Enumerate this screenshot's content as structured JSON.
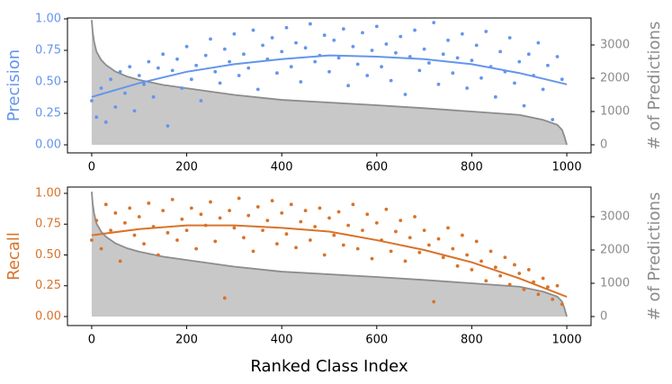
{
  "chart_data": [
    {
      "type": "scatter",
      "ylabel": "Precision",
      "y2label": "# of Predictions",
      "color": "#6495ed",
      "area_color": "#c8c8c8",
      "area_line_color": "#8c8c8c",
      "axis_label_color": "#8c8c8c",
      "xlim": [
        -51,
        1051
      ],
      "xticks": [
        0,
        200,
        400,
        600,
        800,
        1000
      ],
      "ylim": [
        -0.064,
        1.007
      ],
      "yticks": [
        {
          "value": 0,
          "label": "0.00"
        },
        {
          "value": 0.25,
          "label": "0.25"
        },
        {
          "value": 0.5,
          "label": "0.50"
        },
        {
          "value": 0.75,
          "label": "0.75"
        },
        {
          "value": 1,
          "label": "1.00"
        }
      ],
      "y2lim": [
        -243,
        3811
      ],
      "y2ticks": [
        0,
        1000,
        2000,
        3000
      ],
      "series": [
        {
          "type": "area",
          "axis": "y2",
          "x": [
            0,
            2,
            5,
            10,
            20,
            30,
            50,
            75,
            100,
            150,
            200,
            300,
            400,
            500,
            600,
            700,
            800,
            900,
            950,
            980,
            990,
            995,
            1000
          ],
          "values": [
            3750,
            3400,
            3100,
            2800,
            2550,
            2400,
            2200,
            2050,
            1950,
            1800,
            1700,
            1500,
            1350,
            1270,
            1190,
            1100,
            1000,
            900,
            750,
            600,
            450,
            250,
            0
          ]
        },
        {
          "type": "scatter",
          "x": [
            0,
            10,
            20,
            30,
            40,
            50,
            60,
            70,
            80,
            90,
            100,
            110,
            120,
            130,
            140,
            150,
            160,
            170,
            180,
            190,
            200,
            210,
            220,
            230,
            240,
            250,
            260,
            270,
            280,
            290,
            300,
            310,
            320,
            330,
            340,
            350,
            360,
            370,
            380,
            390,
            400,
            410,
            420,
            430,
            440,
            450,
            460,
            470,
            480,
            490,
            500,
            510,
            520,
            530,
            540,
            550,
            560,
            570,
            580,
            590,
            600,
            610,
            620,
            630,
            640,
            650,
            660,
            670,
            680,
            690,
            700,
            710,
            720,
            730,
            740,
            750,
            760,
            770,
            780,
            790,
            800,
            810,
            820,
            830,
            840,
            850,
            860,
            870,
            880,
            890,
            900,
            910,
            920,
            930,
            940,
            950,
            960,
            970,
            980,
            990
          ],
          "values": [
            0.35,
            0.22,
            0.45,
            0.18,
            0.52,
            0.3,
            0.58,
            0.41,
            0.62,
            0.27,
            0.55,
            0.48,
            0.66,
            0.38,
            0.61,
            0.72,
            0.15,
            0.59,
            0.68,
            0.45,
            0.78,
            0.52,
            0.63,
            0.35,
            0.71,
            0.84,
            0.58,
            0.49,
            0.76,
            0.66,
            0.88,
            0.55,
            0.72,
            0.61,
            0.91,
            0.44,
            0.79,
            0.68,
            0.85,
            0.57,
            0.74,
            0.93,
            0.62,
            0.81,
            0.5,
            0.77,
            0.96,
            0.66,
            0.71,
            0.87,
            0.58,
            0.83,
            0.69,
            0.92,
            0.47,
            0.78,
            0.64,
            0.89,
            0.55,
            0.75,
            0.94,
            0.62,
            0.8,
            0.51,
            0.73,
            0.86,
            0.4,
            0.7,
            0.91,
            0.59,
            0.76,
            0.65,
            0.97,
            0.48,
            0.72,
            0.83,
            0.57,
            0.69,
            0.88,
            0.45,
            0.67,
            0.79,
            0.53,
            0.9,
            0.62,
            0.38,
            0.74,
            0.58,
            0.85,
            0.49,
            0.66,
            0.31,
            0.72,
            0.55,
            0.81,
            0.44,
            0.63,
            0.2,
            0.7,
            0.52
          ]
        },
        {
          "type": "line",
          "x": [
            0,
            100,
            200,
            300,
            400,
            500,
            600,
            700,
            800,
            900,
            1000
          ],
          "values": [
            0.38,
            0.49,
            0.58,
            0.64,
            0.68,
            0.71,
            0.7,
            0.68,
            0.64,
            0.57,
            0.48
          ]
        }
      ]
    },
    {
      "type": "scatter",
      "ylabel": "Recall",
      "y2label": "# of Predictions",
      "xlabel": "Ranked Class Index",
      "color": "#d8732a",
      "area_color": "#c8c8c8",
      "area_line_color": "#8c8c8c",
      "axis_label_color": "#8c8c8c",
      "xlim": [
        -51,
        1051
      ],
      "xticks": [
        0,
        200,
        400,
        600,
        800,
        1000
      ],
      "ylim": [
        -0.073,
        1.051
      ],
      "yticks": [
        {
          "value": 0,
          "label": "0.00"
        },
        {
          "value": 0.25,
          "label": "0.25"
        },
        {
          "value": 0.5,
          "label": "0.50"
        },
        {
          "value": 0.75,
          "label": "0.75"
        },
        {
          "value": 1,
          "label": "1.00"
        }
      ],
      "y2lim": [
        -270,
        3892
      ],
      "y2ticks": [
        0,
        1000,
        2000,
        3000
      ],
      "series": [
        {
          "type": "area",
          "axis": "y2",
          "x": [
            0,
            2,
            5,
            10,
            20,
            30,
            50,
            75,
            100,
            150,
            200,
            300,
            400,
            500,
            600,
            700,
            800,
            900,
            950,
            980,
            990,
            995,
            1000
          ],
          "values": [
            3750,
            3400,
            3100,
            2800,
            2550,
            2400,
            2200,
            2050,
            1950,
            1800,
            1700,
            1500,
            1350,
            1270,
            1190,
            1100,
            1000,
            900,
            750,
            600,
            450,
            250,
            0
          ]
        },
        {
          "type": "scatter",
          "x": [
            0,
            10,
            20,
            30,
            40,
            50,
            60,
            70,
            80,
            90,
            100,
            110,
            120,
            130,
            140,
            150,
            160,
            170,
            180,
            190,
            200,
            210,
            220,
            230,
            240,
            250,
            260,
            270,
            280,
            290,
            300,
            310,
            320,
            330,
            340,
            350,
            360,
            370,
            380,
            390,
            400,
            410,
            420,
            430,
            440,
            450,
            460,
            470,
            480,
            490,
            500,
            510,
            520,
            530,
            540,
            550,
            560,
            570,
            580,
            590,
            600,
            610,
            620,
            630,
            640,
            650,
            660,
            670,
            680,
            690,
            700,
            710,
            720,
            730,
            740,
            750,
            760,
            770,
            780,
            790,
            800,
            810,
            820,
            830,
            840,
            850,
            860,
            870,
            880,
            890,
            900,
            910,
            920,
            930,
            940,
            950,
            960,
            970,
            980,
            990
          ],
          "values": [
            0.62,
            0.78,
            0.55,
            0.91,
            0.7,
            0.84,
            0.45,
            0.76,
            0.88,
            0.66,
            0.81,
            0.59,
            0.92,
            0.73,
            0.5,
            0.86,
            0.68,
            0.95,
            0.62,
            0.79,
            0.7,
            0.88,
            0.55,
            0.83,
            0.74,
            0.93,
            0.61,
            0.8,
            0.15,
            0.86,
            0.72,
            0.96,
            0.64,
            0.82,
            0.53,
            0.89,
            0.7,
            0.78,
            0.94,
            0.59,
            0.84,
            0.67,
            0.91,
            0.56,
            0.77,
            0.86,
            0.62,
            0.73,
            0.88,
            0.5,
            0.8,
            0.66,
            0.85,
            0.58,
            0.74,
            0.91,
            0.55,
            0.7,
            0.83,
            0.47,
            0.76,
            0.62,
            0.87,
            0.53,
            0.69,
            0.78,
            0.45,
            0.64,
            0.81,
            0.52,
            0.7,
            0.58,
            0.12,
            0.63,
            0.48,
            0.72,
            0.55,
            0.41,
            0.66,
            0.5,
            0.38,
            0.61,
            0.45,
            0.29,
            0.53,
            0.4,
            0.33,
            0.48,
            0.26,
            0.42,
            0.35,
            0.22,
            0.38,
            0.28,
            0.18,
            0.31,
            0.24,
            0.14,
            0.25,
            0.1
          ]
        },
        {
          "type": "line",
          "x": [
            0,
            100,
            200,
            300,
            400,
            500,
            600,
            700,
            800,
            900,
            1000
          ],
          "values": [
            0.66,
            0.71,
            0.74,
            0.74,
            0.72,
            0.69,
            0.62,
            0.54,
            0.44,
            0.31,
            0.16
          ]
        }
      ]
    }
  ]
}
